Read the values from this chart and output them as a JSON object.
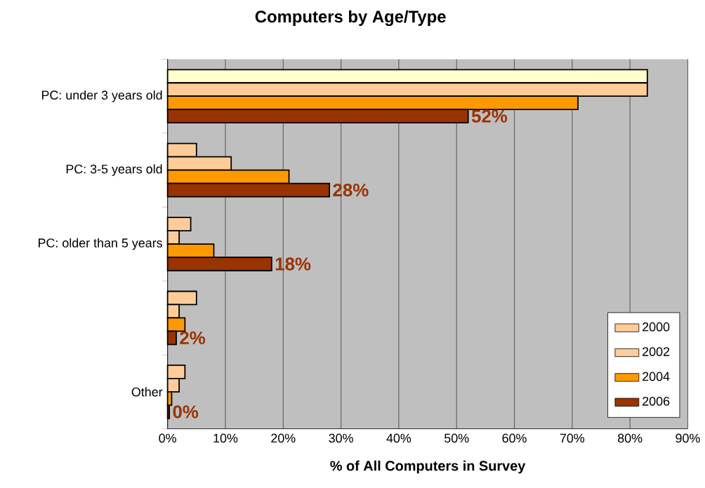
{
  "chart_data": {
    "type": "bar",
    "orientation": "horizontal",
    "title": "Computers by Age/Type",
    "xlabel": "% of All Computers in Survey",
    "categories": [
      "PC: under 3 years old",
      "PC: 3-5 years old",
      "PC: older than 5 years",
      null,
      "Other"
    ],
    "series": [
      {
        "name": "2000",
        "color": "#ffcc99",
        "colors": [
          "#ffffcc",
          "#ffcc99",
          "#ffcc99",
          "#ffcc99",
          "#ffcc99"
        ],
        "values": [
          83,
          5,
          4,
          5,
          3
        ]
      },
      {
        "name": "2002",
        "color": "#ffcc99",
        "values": [
          83,
          11,
          2,
          2,
          2
        ]
      },
      {
        "name": "2004",
        "color": "#ff9900",
        "values": [
          71,
          21,
          8,
          3,
          0.7
        ]
      },
      {
        "name": "2006",
        "color": "#993300",
        "values": [
          52,
          28,
          18,
          1.5,
          0.3
        ],
        "value_labels": [
          "52%",
          "28%",
          "18%",
          "2%",
          "0%"
        ]
      }
    ],
    "xlim": [
      0,
      90
    ],
    "xticks": [
      {
        "value": 0,
        "label": "0%"
      },
      {
        "value": 10,
        "label": "10%"
      },
      {
        "value": 20,
        "label": "20%"
      },
      {
        "value": 30,
        "label": "30%"
      },
      {
        "value": 40,
        "label": "40%"
      },
      {
        "value": 50,
        "label": "50%"
      },
      {
        "value": 60,
        "label": "60%"
      },
      {
        "value": 70,
        "label": "70%"
      },
      {
        "value": 80,
        "label": "80%"
      },
      {
        "value": 90,
        "label": "90%"
      }
    ],
    "grid": "x",
    "legend": "bottom right"
  }
}
